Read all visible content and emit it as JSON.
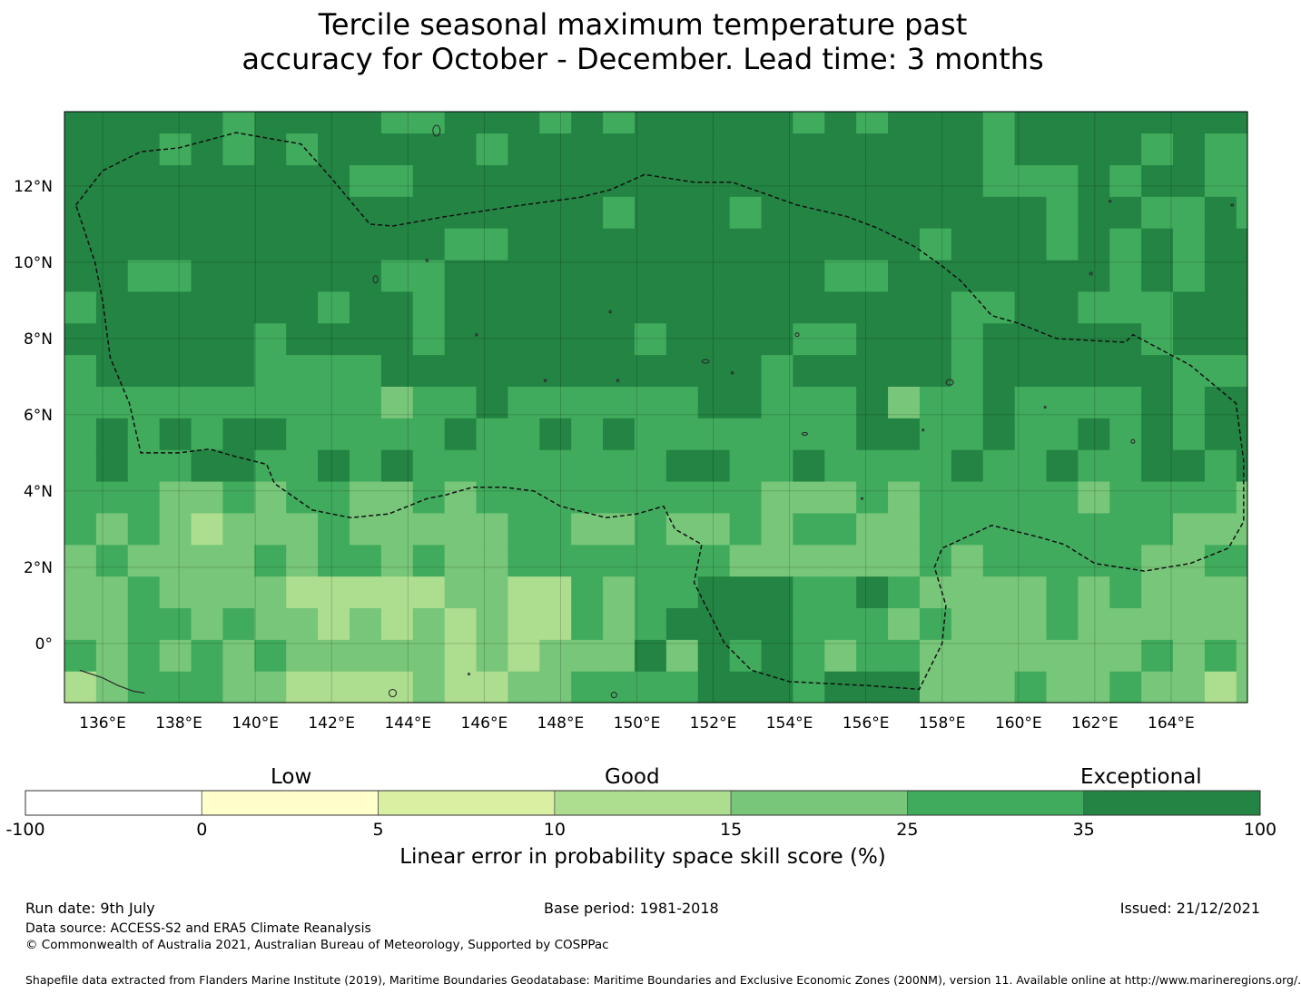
{
  "title": {
    "line1": "Tercile seasonal maximum temperature past",
    "line2": "accuracy for October - December. Lead time: 3 months"
  },
  "map": {
    "x_ticks": [
      "136°E",
      "138°E",
      "140°E",
      "142°E",
      "144°E",
      "146°E",
      "148°E",
      "150°E",
      "152°E",
      "154°E",
      "156°E",
      "158°E",
      "160°E",
      "162°E",
      "164°E"
    ],
    "y_ticks": [
      "12°N",
      "10°N",
      "8°N",
      "6°N",
      "4°N",
      "2°N",
      "0°"
    ],
    "lon_range": [
      135,
      166
    ],
    "lat_range": [
      -1.55,
      13.95
    ],
    "cell_deg": 0.83,
    "gridlines": true,
    "colors": {
      "c0": "#ffffff",
      "c1": "#ffffcc",
      "c2": "#d9f0a3",
      "c3": "#addd8e",
      "c4": "#78c679",
      "c5": "#41ab5d",
      "c6": "#238443",
      "boundary": "#111111",
      "land": "#2b2b2b"
    }
  },
  "legend": {
    "categories": [
      "Low",
      "Good",
      "Exceptional"
    ],
    "ticks": [
      "-100",
      "0",
      "5",
      "10",
      "15",
      "25",
      "35",
      "100"
    ],
    "label": "Linear error in probability space skill score (%)"
  },
  "footer": {
    "run_date": "Run date: 9th July",
    "base_period": "Base period: 1981-2018",
    "issued": "Issued: 21/12/2021",
    "data_source": "Data source: ACCESS-S2 and ERA5 Climate Reanalysis",
    "copyright": "© Commonwealth of Australia 2021, Australian Bureau of Meteorology, Supported by COSPPac",
    "shapefile": "Shapefile data extracted from Flanders Marine Institute (2019), Maritime Boundaries Geodatabase: Maritime Boundaries and Exclusive Economic Zones (200NM), version 11. Available online at http://www.marineregions.org/."
  }
}
